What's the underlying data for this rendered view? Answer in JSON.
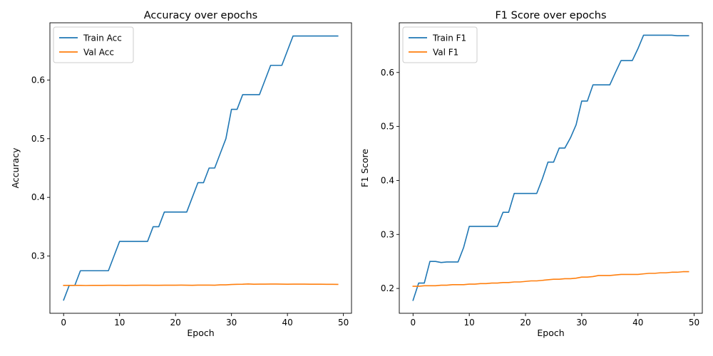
{
  "chart_data": [
    {
      "type": "line",
      "title": "Accuracy over epochs",
      "xlabel": "Epoch",
      "ylabel": "Accuracy",
      "xlim": [
        -2.45,
        51.45
      ],
      "ylim": [
        0.2025,
        0.6975
      ],
      "xticks": [
        0,
        10,
        20,
        30,
        40,
        50
      ],
      "yticks": [
        0.3,
        0.4,
        0.5,
        0.6
      ],
      "xtick_labels": [
        "0",
        "10",
        "20",
        "30",
        "40",
        "50"
      ],
      "ytick_labels": [
        "0.3",
        "0.4",
        "0.5",
        "0.6"
      ],
      "legend_position": "top-left",
      "grid": false,
      "series": [
        {
          "name": "Train Acc",
          "color": "#1f77b4",
          "x": [
            0,
            1,
            2,
            3,
            4,
            5,
            6,
            7,
            8,
            9,
            10,
            11,
            12,
            13,
            14,
            15,
            16,
            17,
            18,
            19,
            20,
            21,
            22,
            23,
            24,
            25,
            26,
            27,
            28,
            29,
            30,
            31,
            32,
            33,
            34,
            35,
            36,
            37,
            38,
            39,
            40,
            41,
            42,
            43,
            44,
            45,
            46,
            47,
            48,
            49
          ],
          "y": [
            0.225,
            0.25,
            0.25,
            0.275,
            0.275,
            0.275,
            0.275,
            0.275,
            0.275,
            0.3,
            0.325,
            0.325,
            0.325,
            0.325,
            0.325,
            0.325,
            0.35,
            0.35,
            0.375,
            0.375,
            0.375,
            0.375,
            0.375,
            0.4,
            0.425,
            0.425,
            0.45,
            0.45,
            0.475,
            0.5,
            0.55,
            0.55,
            0.575,
            0.575,
            0.575,
            0.575,
            0.6,
            0.625,
            0.625,
            0.625,
            0.65,
            0.675,
            0.675,
            0.675,
            0.675,
            0.675,
            0.675,
            0.675,
            0.675,
            0.675
          ]
        },
        {
          "name": "Val Acc",
          "color": "#ff7f0e",
          "x": [
            0,
            1,
            2,
            3,
            4,
            5,
            6,
            7,
            8,
            9,
            10,
            11,
            12,
            13,
            14,
            15,
            16,
            17,
            18,
            19,
            20,
            21,
            22,
            23,
            24,
            25,
            26,
            27,
            28,
            29,
            30,
            31,
            32,
            33,
            34,
            35,
            36,
            37,
            38,
            39,
            40,
            41,
            42,
            43,
            44,
            45,
            46,
            47,
            48,
            49
          ],
          "y": [
            0.25,
            0.25,
            0.25,
            0.25,
            0.2498,
            0.25,
            0.25,
            0.25,
            0.2502,
            0.2502,
            0.2502,
            0.25,
            0.2502,
            0.2502,
            0.2503,
            0.2503,
            0.2502,
            0.2502,
            0.2503,
            0.2503,
            0.2503,
            0.2505,
            0.2503,
            0.2502,
            0.2505,
            0.2505,
            0.2505,
            0.2503,
            0.251,
            0.251,
            0.2515,
            0.2518,
            0.252,
            0.2525,
            0.252,
            0.2522,
            0.2522,
            0.2523,
            0.2523,
            0.2522,
            0.252,
            0.2522,
            0.2522,
            0.2522,
            0.252,
            0.252,
            0.252,
            0.2518,
            0.2518,
            0.2517
          ]
        }
      ]
    },
    {
      "type": "line",
      "title": "F1 Score over epochs",
      "xlabel": "Epoch",
      "ylabel": "F1 Score",
      "xlim": [
        -2.45,
        51.45
      ],
      "ylim": [
        0.154,
        0.692
      ],
      "xticks": [
        0,
        10,
        20,
        30,
        40,
        50
      ],
      "yticks": [
        0.2,
        0.3,
        0.4,
        0.5,
        0.6
      ],
      "xtick_labels": [
        "0",
        "10",
        "20",
        "30",
        "40",
        "50"
      ],
      "ytick_labels": [
        "0.2",
        "0.3",
        "0.4",
        "0.5",
        "0.6"
      ],
      "legend_position": "top-left",
      "grid": false,
      "series": [
        {
          "name": "Train F1",
          "color": "#1f77b4",
          "x": [
            0,
            1,
            2,
            3,
            4,
            5,
            6,
            7,
            8,
            9,
            10,
            11,
            12,
            13,
            14,
            15,
            16,
            17,
            18,
            19,
            20,
            21,
            22,
            23,
            24,
            25,
            26,
            27,
            28,
            29,
            30,
            31,
            32,
            33,
            34,
            35,
            36,
            37,
            38,
            39,
            40,
            41,
            42,
            43,
            44,
            45,
            46,
            47,
            48,
            49
          ],
          "y": [
            0.178,
            0.21,
            0.21,
            0.25,
            0.25,
            0.248,
            0.249,
            0.249,
            0.249,
            0.276,
            0.315,
            0.315,
            0.315,
            0.315,
            0.315,
            0.315,
            0.341,
            0.341,
            0.376,
            0.376,
            0.376,
            0.376,
            0.376,
            0.403,
            0.434,
            0.434,
            0.46,
            0.46,
            0.479,
            0.503,
            0.547,
            0.547,
            0.577,
            0.577,
            0.577,
            0.577,
            0.6,
            0.622,
            0.622,
            0.622,
            0.644,
            0.669,
            0.669,
            0.669,
            0.669,
            0.669,
            0.669,
            0.668,
            0.668,
            0.668
          ]
        },
        {
          "name": "Val F1",
          "color": "#ff7f0e",
          "x": [
            0,
            1,
            2,
            3,
            4,
            5,
            6,
            7,
            8,
            9,
            10,
            11,
            12,
            13,
            14,
            15,
            16,
            17,
            18,
            19,
            20,
            21,
            22,
            23,
            24,
            25,
            26,
            27,
            28,
            29,
            30,
            31,
            32,
            33,
            34,
            35,
            36,
            37,
            38,
            39,
            40,
            41,
            42,
            43,
            44,
            45,
            46,
            47,
            48,
            49
          ],
          "y": [
            0.204,
            0.204,
            0.205,
            0.205,
            0.205,
            0.206,
            0.206,
            0.207,
            0.207,
            0.207,
            0.208,
            0.208,
            0.209,
            0.209,
            0.21,
            0.21,
            0.211,
            0.211,
            0.212,
            0.212,
            0.213,
            0.214,
            0.214,
            0.215,
            0.216,
            0.217,
            0.217,
            0.218,
            0.218,
            0.219,
            0.221,
            0.221,
            0.222,
            0.224,
            0.224,
            0.224,
            0.225,
            0.226,
            0.226,
            0.226,
            0.226,
            0.227,
            0.228,
            0.228,
            0.229,
            0.229,
            0.23,
            0.23,
            0.231,
            0.231
          ]
        }
      ]
    }
  ]
}
